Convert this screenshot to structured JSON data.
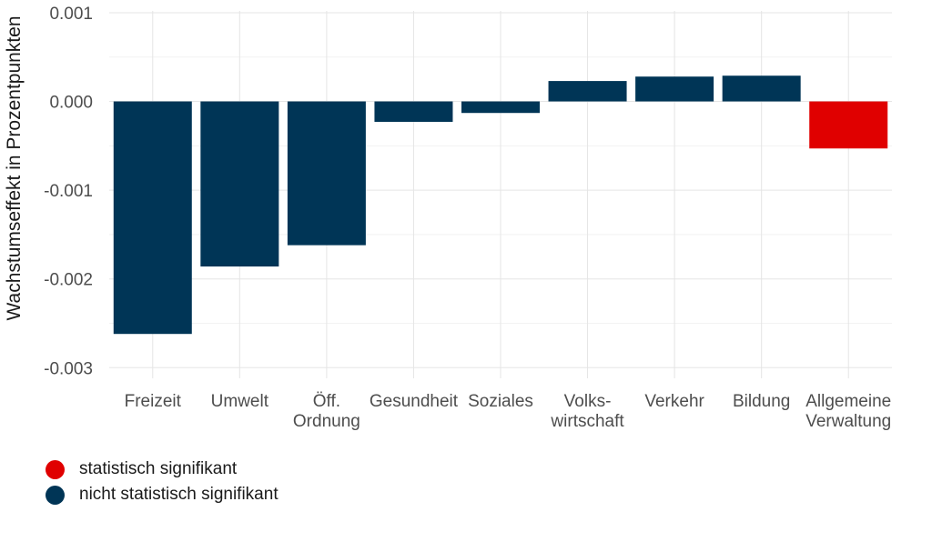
{
  "chart_data": {
    "type": "bar",
    "categories": [
      [
        "Freizeit"
      ],
      [
        "Umwelt"
      ],
      [
        "Öff.",
        "Ordnung"
      ],
      [
        "Gesundheit"
      ],
      [
        "Soziales"
      ],
      [
        "Volks-",
        "wirtschaft"
      ],
      [
        "Verkehr"
      ],
      [
        "Bildung"
      ],
      [
        "Allgemeine",
        "Verwaltung"
      ]
    ],
    "values": [
      -0.00262,
      -0.00186,
      -0.00162,
      -0.00023,
      -0.00013,
      0.00023,
      0.00028,
      0.00029,
      -0.00053
    ],
    "significant": [
      false,
      false,
      false,
      false,
      false,
      false,
      false,
      false,
      true
    ],
    "ylabel": "Wachstumseffekt in Prozentpunkten",
    "ylim": [
      -0.00312,
      0.00102
    ],
    "yticks": [
      0.001,
      0.0,
      -0.001,
      -0.002,
      -0.003
    ],
    "ytick_labels": [
      "0.001",
      "0.000",
      "-0.001",
      "-0.002",
      "-0.003"
    ],
    "grid": true,
    "legend_position": "bottom-left",
    "colors": {
      "significant": "#e00000",
      "not_significant": "#003556",
      "grid_major": "#e5e5e5",
      "grid_minor": "#f2f2f2"
    }
  },
  "legend": {
    "items": [
      {
        "label": "statistisch signifikant",
        "color": "#e00000"
      },
      {
        "label": "nicht statistisch signifikant",
        "color": "#003556"
      }
    ]
  }
}
